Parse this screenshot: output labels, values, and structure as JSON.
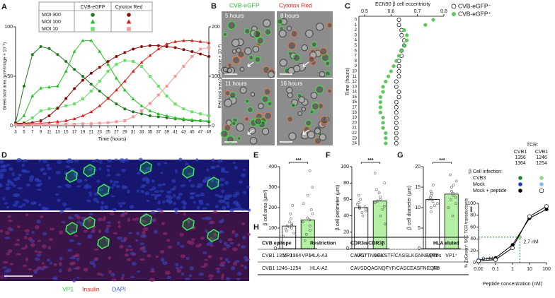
{
  "chart_data": [
    {
      "type": "line",
      "label": "A",
      "xlabel": "Time (hours)",
      "ylabel": "Green total area (μm²/image × 10⁻³)",
      "y2label": "Red total area (μm²/image × 10⁻³)",
      "x": [
        3,
        5,
        7,
        9,
        11,
        13,
        15,
        17,
        19,
        21,
        23,
        25,
        27,
        29,
        31,
        33,
        35,
        37,
        39,
        41,
        43,
        45,
        47,
        49
      ],
      "xlim": [
        3,
        49
      ],
      "xticks": [
        3,
        5,
        7,
        9,
        11,
        13,
        15,
        17,
        19,
        21,
        23,
        25,
        27,
        29,
        31,
        33,
        35,
        37,
        39,
        41,
        43,
        45,
        47,
        49
      ],
      "ylim": [
        0,
        100
      ],
      "yticks": [
        0,
        50,
        100
      ],
      "y2lim": [
        0,
        200
      ],
      "y2ticks": [
        0,
        100,
        200
      ],
      "legend": {
        "columns": [
          "CVB-eGFP",
          "Cytotox Red"
        ],
        "rows": [
          "MOI 300",
          "MOI 100",
          "MOI 10"
        ]
      },
      "series": [
        {
          "color": "#1f7a1f",
          "marker": "circle",
          "values": [
            3,
            40,
            72,
            80,
            78,
            72,
            65,
            57,
            50,
            42,
            35,
            28,
            22,
            17,
            14,
            12,
            10,
            9,
            8,
            7,
            6,
            5,
            5,
            4
          ]
        },
        {
          "color": "#22c222",
          "marker": "triangle",
          "values": [
            2,
            10,
            30,
            38,
            39,
            40,
            55,
            75,
            86,
            86,
            75,
            62,
            48,
            36,
            27,
            20,
            15,
            12,
            10,
            8,
            7,
            6,
            5,
            5
          ]
        },
        {
          "color": "#66e066",
          "marker": "square",
          "values": [
            1,
            3,
            8,
            15,
            17,
            18,
            20,
            22,
            27,
            35,
            45,
            55,
            62,
            66,
            65,
            60,
            50,
            40,
            30,
            22,
            17,
            14,
            12,
            10
          ]
        },
        {
          "color": "#8b0a0a",
          "marker": "circle",
          "axis": "y2",
          "values": [
            5,
            5,
            6,
            10,
            20,
            35,
            55,
            75,
            92,
            106,
            118,
            130,
            140,
            148,
            155,
            160,
            162,
            162,
            160,
            158,
            154,
            150,
            145,
            140
          ]
        },
        {
          "color": "#d91c1c",
          "marker": "triangle",
          "axis": "y2",
          "values": [
            3,
            3,
            4,
            5,
            6,
            8,
            10,
            14,
            20,
            28,
            40,
            55,
            72,
            90,
            110,
            128,
            142,
            155,
            165,
            170,
            172,
            172,
            170,
            168
          ]
        },
        {
          "color": "#f29a9a",
          "marker": "square",
          "axis": "y2",
          "values": [
            2,
            2,
            2,
            2,
            2,
            3,
            3,
            3,
            4,
            4,
            5,
            6,
            8,
            10,
            18,
            30,
            45,
            62,
            80,
            100,
            120,
            140,
            155,
            158
          ]
        }
      ]
    },
    {
      "type": "dot",
      "label": "C",
      "title": "ECN90 β cell eccentricity",
      "ylabel": "Time (hours)",
      "categories": [
        0,
        1,
        2,
        3,
        4,
        5,
        6,
        7,
        8,
        9,
        10,
        11,
        12,
        13,
        14,
        15,
        16,
        17,
        18,
        19,
        20,
        21,
        22,
        23,
        24
      ],
      "xlim": [
        0.5,
        0.8
      ],
      "xticks": [
        0.5,
        0.6,
        0.7,
        0.8
      ],
      "series": [
        {
          "name": "CVB-eGFP⁻",
          "color": "#ffffff",
          "values": [
            0.63,
            0.63,
            0.64,
            0.64,
            0.65,
            0.65,
            0.64,
            0.64,
            0.63,
            0.63,
            0.63,
            0.63,
            0.62,
            0.62,
            0.63,
            0.63,
            0.62,
            0.62,
            0.62,
            0.62,
            0.62,
            0.62,
            0.62,
            0.62,
            0.62
          ]
        },
        {
          "name": "CVB-eGFP⁺",
          "color": "#5cc85c",
          "values": [
            0.76,
            0.73,
            0.65,
            0.66,
            0.66,
            0.65,
            0.64,
            0.63,
            0.62,
            0.61,
            0.6,
            0.59,
            0.58,
            0.57,
            0.57,
            0.56,
            0.56,
            0.56,
            0.56,
            0.57,
            0.57,
            0.57,
            0.58,
            0.58,
            0.58
          ]
        }
      ]
    },
    {
      "type": "bar",
      "label": "E",
      "ylabel": "β cell area (μm²)",
      "categories": [
        "VP1⁻",
        "VP1⁺"
      ],
      "values": [
        110,
        140
      ],
      "colors": [
        "#ffffff",
        "#b3f0a3"
      ],
      "annotation": "***",
      "ylim": [
        0,
        400
      ],
      "yticks": [
        0,
        100,
        200,
        300,
        400
      ],
      "points": [
        [
          60,
          75,
          85,
          95,
          100,
          105,
          110,
          115,
          120,
          130,
          145,
          170,
          210
        ],
        [
          40,
          70,
          90,
          110,
          130,
          140,
          150,
          170,
          190,
          220,
          260,
          300,
          380
        ]
      ]
    },
    {
      "type": "bar",
      "label": "F",
      "ylabel": "β cell perimeter (μm)",
      "categories": [
        "VP1⁻",
        "VP1⁺"
      ],
      "values": [
        50,
        58
      ],
      "colors": [
        "#ffffff",
        "#b3f0a3"
      ],
      "annotation": "***",
      "ylim": [
        0,
        100
      ],
      "yticks": [
        0,
        20,
        40,
        60,
        80,
        100
      ],
      "points": [
        [
          40,
          44,
          46,
          48,
          49,
          50,
          51,
          52,
          54,
          56,
          60,
          65
        ],
        [
          30,
          40,
          48,
          52,
          56,
          58,
          60,
          63,
          68,
          72,
          80,
          92
        ]
      ]
    },
    {
      "type": "bar",
      "label": "G",
      "ylabel": "β cell diameter (μm)",
      "categories": [
        "VP1⁻",
        "VP1⁺"
      ],
      "values": [
        12,
        13.3
      ],
      "colors": [
        "#ffffff",
        "#b3f0a3"
      ],
      "annotation": "***",
      "ylim": [
        0,
        20
      ],
      "yticks": [
        0,
        5,
        10,
        15,
        20
      ],
      "points": [
        [
          9,
          10,
          10.5,
          11,
          11.5,
          12,
          12,
          12.5,
          13,
          13.5,
          14,
          15.5
        ],
        [
          8,
          10,
          11,
          12,
          12.5,
          13,
          13.5,
          14,
          15,
          15.5,
          16.5,
          18
        ]
      ]
    },
    {
      "type": "line",
      "label": "I",
      "xscale": "log",
      "xlabel": "Peptide concentration (nM)",
      "ylabel": "% ZsGreen⁺ 5KC TCR transductants",
      "xlim": [
        0.01,
        100
      ],
      "xticks": [
        0.01,
        0.1,
        1,
        10,
        100
      ],
      "ylim": [
        0,
        100
      ],
      "yticks": [
        0,
        20,
        40,
        60,
        80,
        100
      ],
      "annotations": [
        "2.7 nM",
        "0 nM"
      ],
      "legend": {
        "title": "TCR:",
        "columns": [
          [
            "CVB1",
            "1356",
            "1364"
          ],
          [
            "CVB1",
            "1246",
            "1254"
          ]
        ],
        "heading": "β Cell infection:",
        "rows": [
          "CVB3",
          "Mock",
          "Mock + peptide"
        ]
      },
      "series": [
        {
          "color": "#1a8a2e",
          "marker": "circle",
          "guides": true,
          "x": [
            2.7
          ],
          "values": [
            43
          ]
        },
        {
          "color": "#1f3cc0",
          "marker": "circle",
          "x": [
            0.01
          ],
          "values": [
            5
          ]
        },
        {
          "color": "#000000",
          "marker": "circle",
          "x": [
            0.01,
            0.1,
            1,
            10,
            100
          ],
          "values": [
            5,
            8,
            30,
            75,
            90
          ]
        },
        {
          "color": "#8fd98f",
          "marker": "circle",
          "x": [
            2.7
          ],
          "values": [
            43
          ]
        },
        {
          "color": "#8fb0e8",
          "marker": "circle",
          "x": [
            0.01
          ],
          "values": [
            5
          ]
        },
        {
          "color": "#ffffff",
          "marker": "circle",
          "x": [
            0.01,
            0.1,
            1,
            10,
            100
          ],
          "values": [
            3,
            5,
            25,
            78,
            95
          ]
        }
      ]
    }
  ],
  "micrographs": [
    {
      "label": "B",
      "channels": [
        {
          "name": "CVB-eGFP",
          "color": "#2fb52f"
        },
        {
          "name": "Cytotox Red",
          "color": "#e0201b"
        }
      ],
      "timepoints": [
        "5 hours",
        "8 hours",
        "11 hours",
        "16 hours"
      ]
    },
    {
      "label": "D",
      "channels": [
        {
          "name": "VP1",
          "color": "#2ecc40"
        },
        {
          "name": "Insulin",
          "color": "#e0201b"
        },
        {
          "name": "DAPI",
          "color": "#3a5bd9"
        }
      ]
    }
  ],
  "table": {
    "label": "H",
    "columns": [
      "CVB epitope",
      "Restriction",
      "CDR3α/CDR3β",
      "HLA eluted"
    ],
    "rows": [
      [
        "CVB1 1356–1364",
        "HLA-A3",
        "CAVGTTNAGKSTF/CASSLKGNNEQFF",
        "Yes"
      ],
      [
        "CVB1 1246–1254",
        "HLA-A2",
        "CAVSDQAGNQFYF/CASCEASFNEQFF",
        "No"
      ]
    ]
  }
}
